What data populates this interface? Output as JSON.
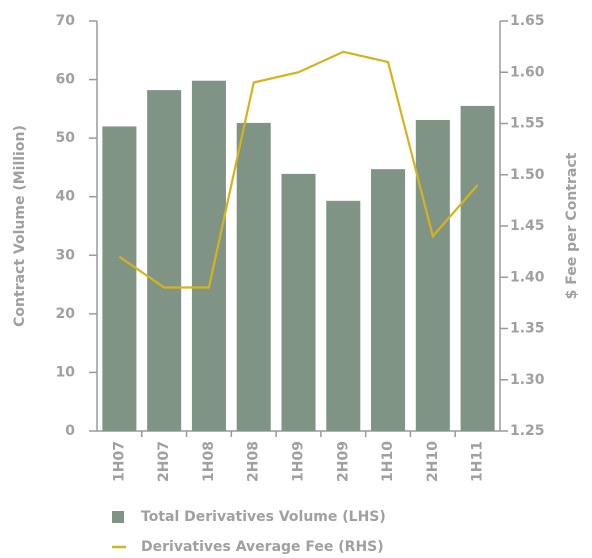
{
  "chart_data": {
    "type": "bar",
    "categories": [
      "1H07",
      "2H07",
      "1H08",
      "2H08",
      "1H09",
      "2H09",
      "1H10",
      "2H10",
      "1H11"
    ],
    "series": [
      {
        "name": "Total Derivatives Volume (LHS)",
        "type": "bar",
        "color": "#7f9484",
        "values": [
          52,
          58.2,
          59.8,
          52.6,
          43.9,
          39.3,
          44.7,
          53.1,
          55.5
        ]
      },
      {
        "name": "Derivatives Average Fee (RHS)",
        "type": "line",
        "axis": "y2",
        "color": "#d6b21e",
        "values": [
          1.42,
          1.39,
          1.39,
          1.59,
          1.6,
          1.62,
          1.61,
          1.44,
          1.49
        ]
      }
    ],
    "ylabel": "Contract Volume (Million)",
    "y2label": "$ Fee per Contract",
    "ylim": [
      0,
      70
    ],
    "yticks": [
      0,
      10,
      20,
      30,
      40,
      50,
      60,
      70
    ],
    "y2lim": [
      1.25,
      1.65
    ],
    "y2ticks": [
      1.25,
      {
        "value": 1.3,
        "label": "1.30"
      },
      1.35,
      {
        "value": 1.4,
        "label": "1.40"
      },
      1.45,
      {
        "value": 1.5,
        "label": "1.50"
      },
      1.55,
      {
        "value": 1.6,
        "label": "1.60"
      },
      1.65
    ]
  }
}
